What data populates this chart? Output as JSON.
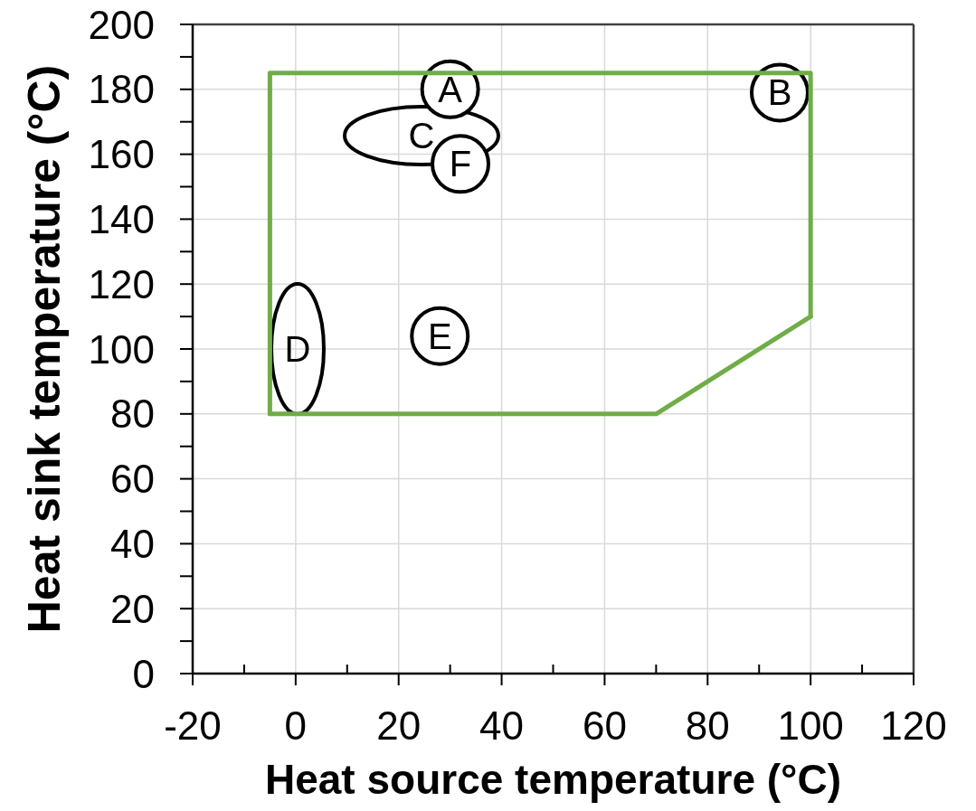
{
  "chart_data": {
    "type": "line",
    "xlabel": "Heat source temperature (°C)",
    "ylabel": "Heat sink temperature (°C)",
    "xlim": [
      -20,
      120
    ],
    "ylim": [
      0,
      200
    ],
    "xticks": [
      -20,
      {
        "value": -10,
        "label": null
      },
      0,
      {
        "value": 10,
        "label": null
      },
      20,
      {
        "value": 30,
        "label": null
      },
      40,
      {
        "value": 50,
        "label": null
      },
      60,
      {
        "value": 70,
        "label": null
      },
      80,
      {
        "value": 90,
        "label": null
      },
      100,
      {
        "value": 110,
        "label": null
      },
      120
    ],
    "yticks": [
      0,
      {
        "value": 10,
        "label": null
      },
      20,
      {
        "value": 30,
        "label": null
      },
      40,
      {
        "value": 50,
        "label": null
      },
      60,
      {
        "value": 70,
        "label": null
      },
      80,
      {
        "value": 90,
        "label": null
      },
      100,
      {
        "value": 110,
        "label": null
      },
      120,
      {
        "value": 130,
        "label": null
      },
      140,
      {
        "value": 150,
        "label": null
      },
      160,
      {
        "value": 170,
        "label": null
      },
      180,
      {
        "value": 190,
        "label": null
      },
      200
    ],
    "grid": true,
    "series": [
      {
        "color": "#70ad47",
        "x": [
          -5,
          -5,
          100,
          100
        ],
        "values": [
          80,
          185,
          185,
          110
        ]
      },
      {
        "color": "#70ad47",
        "x": [
          -5,
          70,
          100
        ],
        "values": [
          80,
          80,
          110
        ]
      },
      {
        "type": "scatter",
        "color": "#000000",
        "marker": "circle",
        "x": [
          30,
          94,
          28,
          32
        ],
        "values": [
          180,
          179,
          104,
          157
        ]
      }
    ],
    "annotations": [
      {
        "text": "A",
        "x": 30,
        "y": 180
      },
      {
        "text": "B",
        "x": 94,
        "y": 179
      },
      "C",
      "D",
      {
        "text": "E",
        "x": 28,
        "y": 104
      },
      {
        "text": "F",
        "x": 32,
        "y": 157
      }
    ]
  }
}
